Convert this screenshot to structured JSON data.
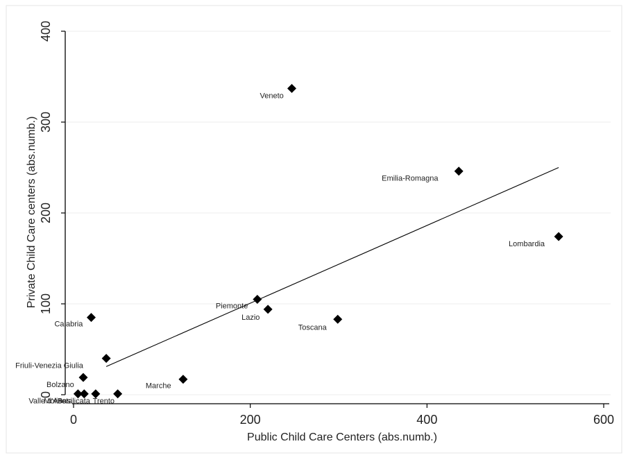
{
  "chart_data": {
    "type": "scatter",
    "xlabel": "Public Child Care Centers (abs.numb.)",
    "ylabel": "Private Child Care centers (abs.numb.)",
    "xlim": [
      0,
      600
    ],
    "ylim": [
      0,
      400
    ],
    "x_ticks": [
      "0",
      "200",
      "400",
      "600"
    ],
    "y_ticks": [
      "0",
      "100",
      "200",
      "300",
      "400"
    ],
    "grid": true,
    "legend": "none",
    "marker": "diamond",
    "marker_color": "#000000",
    "points": [
      {
        "label": "Veneto",
        "x": 247,
        "y": 337
      },
      {
        "label": "Emilia-Romagna",
        "x": 436,
        "y": 246
      },
      {
        "label": "Lombardia",
        "x": 549,
        "y": 174
      },
      {
        "label": "Piemonte",
        "x": 208,
        "y": 105
      },
      {
        "label": "Lazio",
        "x": 220,
        "y": 94
      },
      {
        "label": "Toscana",
        "x": 299,
        "y": 83
      },
      {
        "label": "Calabria",
        "x": 20,
        "y": 85
      },
      {
        "label": "Friuli-Venezia Giulia",
        "x": 37,
        "y": 40
      },
      {
        "label": "Marche",
        "x": 124,
        "y": 17
      },
      {
        "label": "Bolzano",
        "x": 11,
        "y": 19
      },
      {
        "label": "Valle d'Aosta",
        "x": 5,
        "y": 1
      },
      {
        "label": "Molise",
        "x": 12,
        "y": 1
      },
      {
        "label": "Basilicata",
        "x": 25,
        "y": 1
      },
      {
        "label": "Trento",
        "x": 50,
        "y": 1
      }
    ],
    "fit_line": {
      "x": [
        37,
        549
      ],
      "y": [
        31,
        250
      ]
    }
  }
}
